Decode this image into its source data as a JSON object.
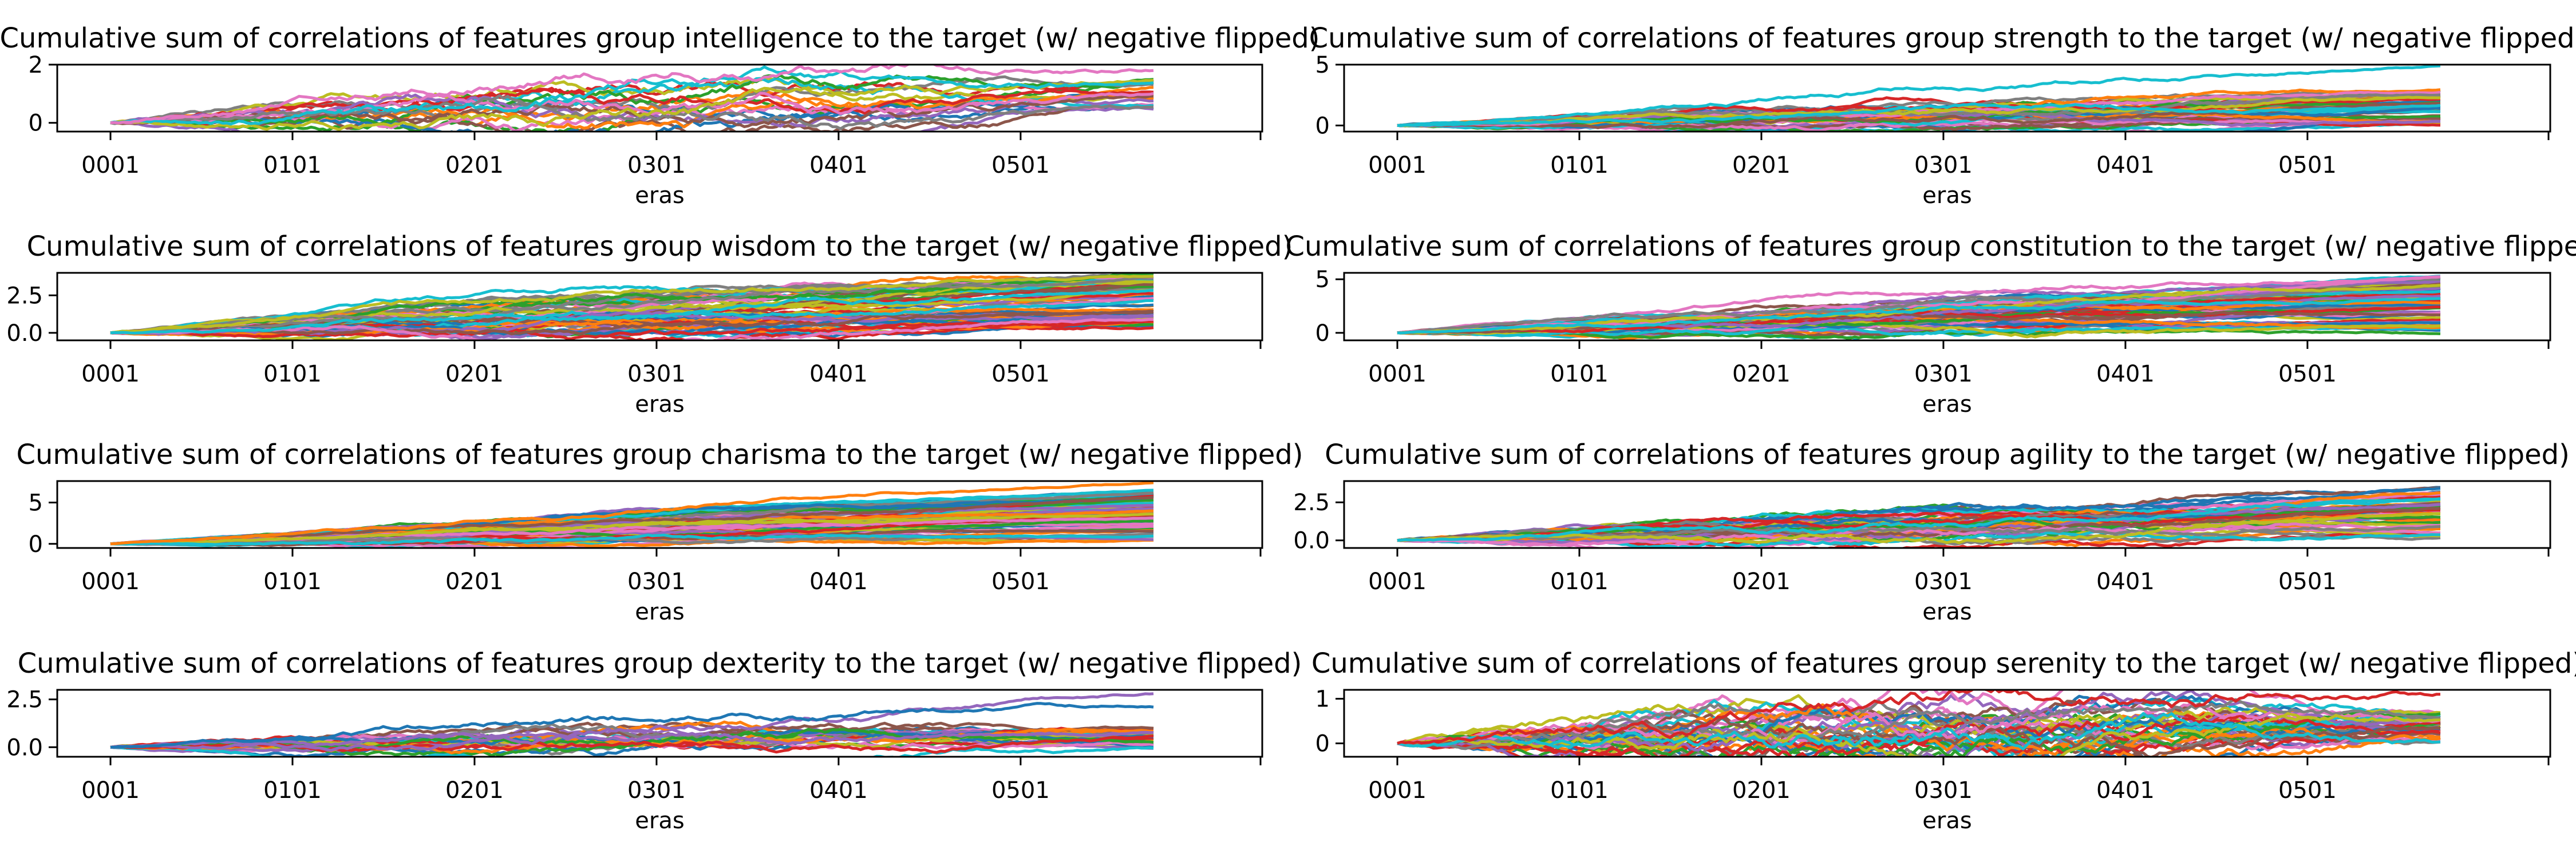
{
  "chart_data": [
    {
      "type": "line",
      "group": "intelligence",
      "title": "Cumulative sum of correlations of features group intelligence to the target (w/ negative flipped)",
      "xlabel": "eras",
      "ylabel": "",
      "x_ticks": [
        "0001",
        "0101",
        "0201",
        "0301",
        "0401",
        "0501"
      ],
      "x_range": [
        1,
        574
      ],
      "ylim": [
        -0.3,
        2.0
      ],
      "y_ticks": [
        0,
        2
      ],
      "y_tick_labels": [
        "0",
        "2"
      ],
      "n_series": 20,
      "final_min": 0.4,
      "final_max": 1.5,
      "amplitude": 0.12,
      "highlight": [
        {
          "color": "#e377c2",
          "final": 1.8
        }
      ]
    },
    {
      "type": "line",
      "group": "strength",
      "title": "Cumulative sum of correlations of features group strength to the target (w/ negative flipped)",
      "xlabel": "eras",
      "ylabel": "",
      "x_ticks": [
        "0001",
        "0101",
        "0201",
        "0301",
        "0401",
        "0501"
      ],
      "x_range": [
        1,
        574
      ],
      "ylim": [
        -0.5,
        5.0
      ],
      "y_ticks": [
        0,
        5
      ],
      "y_tick_labels": [
        "0",
        "5"
      ],
      "n_series": 40,
      "final_min": -0.2,
      "final_max": 3.0,
      "amplitude": 0.12,
      "highlight": [
        {
          "color": "#17becf",
          "final": 4.9
        }
      ]
    },
    {
      "type": "line",
      "group": "wisdom",
      "title": "Cumulative sum of correlations of features group wisdom to the target (w/ negative flipped)",
      "xlabel": "eras",
      "ylabel": "",
      "x_ticks": [
        "0001",
        "0101",
        "0201",
        "0301",
        "0401",
        "0501"
      ],
      "x_range": [
        1,
        574
      ],
      "ylim": [
        -0.5,
        4.0
      ],
      "y_ticks": [
        0,
        2.5
      ],
      "y_tick_labels": [
        "0.0",
        "2.5"
      ],
      "n_series": 60,
      "final_min": 0.2,
      "final_max": 4.0,
      "amplitude": 0.1,
      "highlight": []
    },
    {
      "type": "line",
      "group": "constitution",
      "title": "Cumulative sum of correlations of features group constitution to the target (w/ negative flipped)",
      "xlabel": "eras",
      "ylabel": "",
      "x_ticks": [
        "0001",
        "0101",
        "0201",
        "0301",
        "0401",
        "0501"
      ],
      "x_range": [
        1,
        574
      ],
      "ylim": [
        -0.7,
        5.6
      ],
      "y_ticks": [
        0,
        5
      ],
      "y_tick_labels": [
        "0",
        "5"
      ],
      "n_series": 60,
      "final_min": -0.3,
      "final_max": 5.3,
      "amplitude": 0.15,
      "highlight": []
    },
    {
      "type": "line",
      "group": "charisma",
      "title": "Cumulative sum of correlations of features group charisma to the target (w/ negative flipped)",
      "xlabel": "eras",
      "ylabel": "",
      "x_ticks": [
        "0001",
        "0101",
        "0201",
        "0301",
        "0401",
        "0501"
      ],
      "x_range": [
        1,
        574
      ],
      "ylim": [
        -0.5,
        7.6
      ],
      "y_ticks": [
        0,
        5
      ],
      "y_tick_labels": [
        "0",
        "5"
      ],
      "n_series": 60,
      "final_min": 0.2,
      "final_max": 6.5,
      "amplitude": 0.08,
      "highlight": [
        {
          "color": "#ff7f0e",
          "final": 7.4
        }
      ]
    },
    {
      "type": "line",
      "group": "agility",
      "title": "Cumulative sum of correlations of features group agility to the target (w/ negative flipped)",
      "xlabel": "eras",
      "ylabel": "",
      "x_ticks": [
        "0001",
        "0101",
        "0201",
        "0301",
        "0401",
        "0501"
      ],
      "x_range": [
        1,
        574
      ],
      "ylim": [
        -0.5,
        3.9
      ],
      "y_ticks": [
        0,
        2.5
      ],
      "y_tick_labels": [
        "0.0",
        "2.5"
      ],
      "n_series": 50,
      "final_min": 0.1,
      "final_max": 3.5,
      "amplitude": 0.1,
      "highlight": []
    },
    {
      "type": "line",
      "group": "dexterity",
      "title": "Cumulative sum of correlations of features group dexterity to the target (w/ negative flipped)",
      "xlabel": "eras",
      "ylabel": "",
      "x_ticks": [
        "0001",
        "0101",
        "0201",
        "0301",
        "0401",
        "0501"
      ],
      "x_range": [
        1,
        574
      ],
      "ylim": [
        -0.5,
        3.0
      ],
      "y_ticks": [
        0,
        2.5
      ],
      "y_tick_labels": [
        "0.0",
        "2.5"
      ],
      "n_series": 25,
      "final_min": -0.1,
      "final_max": 1.0,
      "amplitude": 0.1,
      "highlight": [
        {
          "color": "#9467bd",
          "final": 2.8
        },
        {
          "color": "#1f77b4",
          "final": 2.1
        }
      ]
    },
    {
      "type": "line",
      "group": "serenity",
      "title": "Cumulative sum of correlations of features group serenity to the target (w/ negative flipped)",
      "xlabel": "eras",
      "ylabel": "",
      "x_ticks": [
        "0001",
        "0101",
        "0201",
        "0301",
        "0401",
        "0501"
      ],
      "x_range": [
        1,
        574
      ],
      "ylim": [
        -0.3,
        1.2
      ],
      "y_ticks": [
        0,
        1
      ],
      "y_tick_labels": [
        "0",
        "1"
      ],
      "n_series": 40,
      "final_min": 0.0,
      "final_max": 0.7,
      "amplitude": 0.08,
      "highlight": [
        {
          "color": "#d62728",
          "final": 1.1
        }
      ]
    }
  ]
}
